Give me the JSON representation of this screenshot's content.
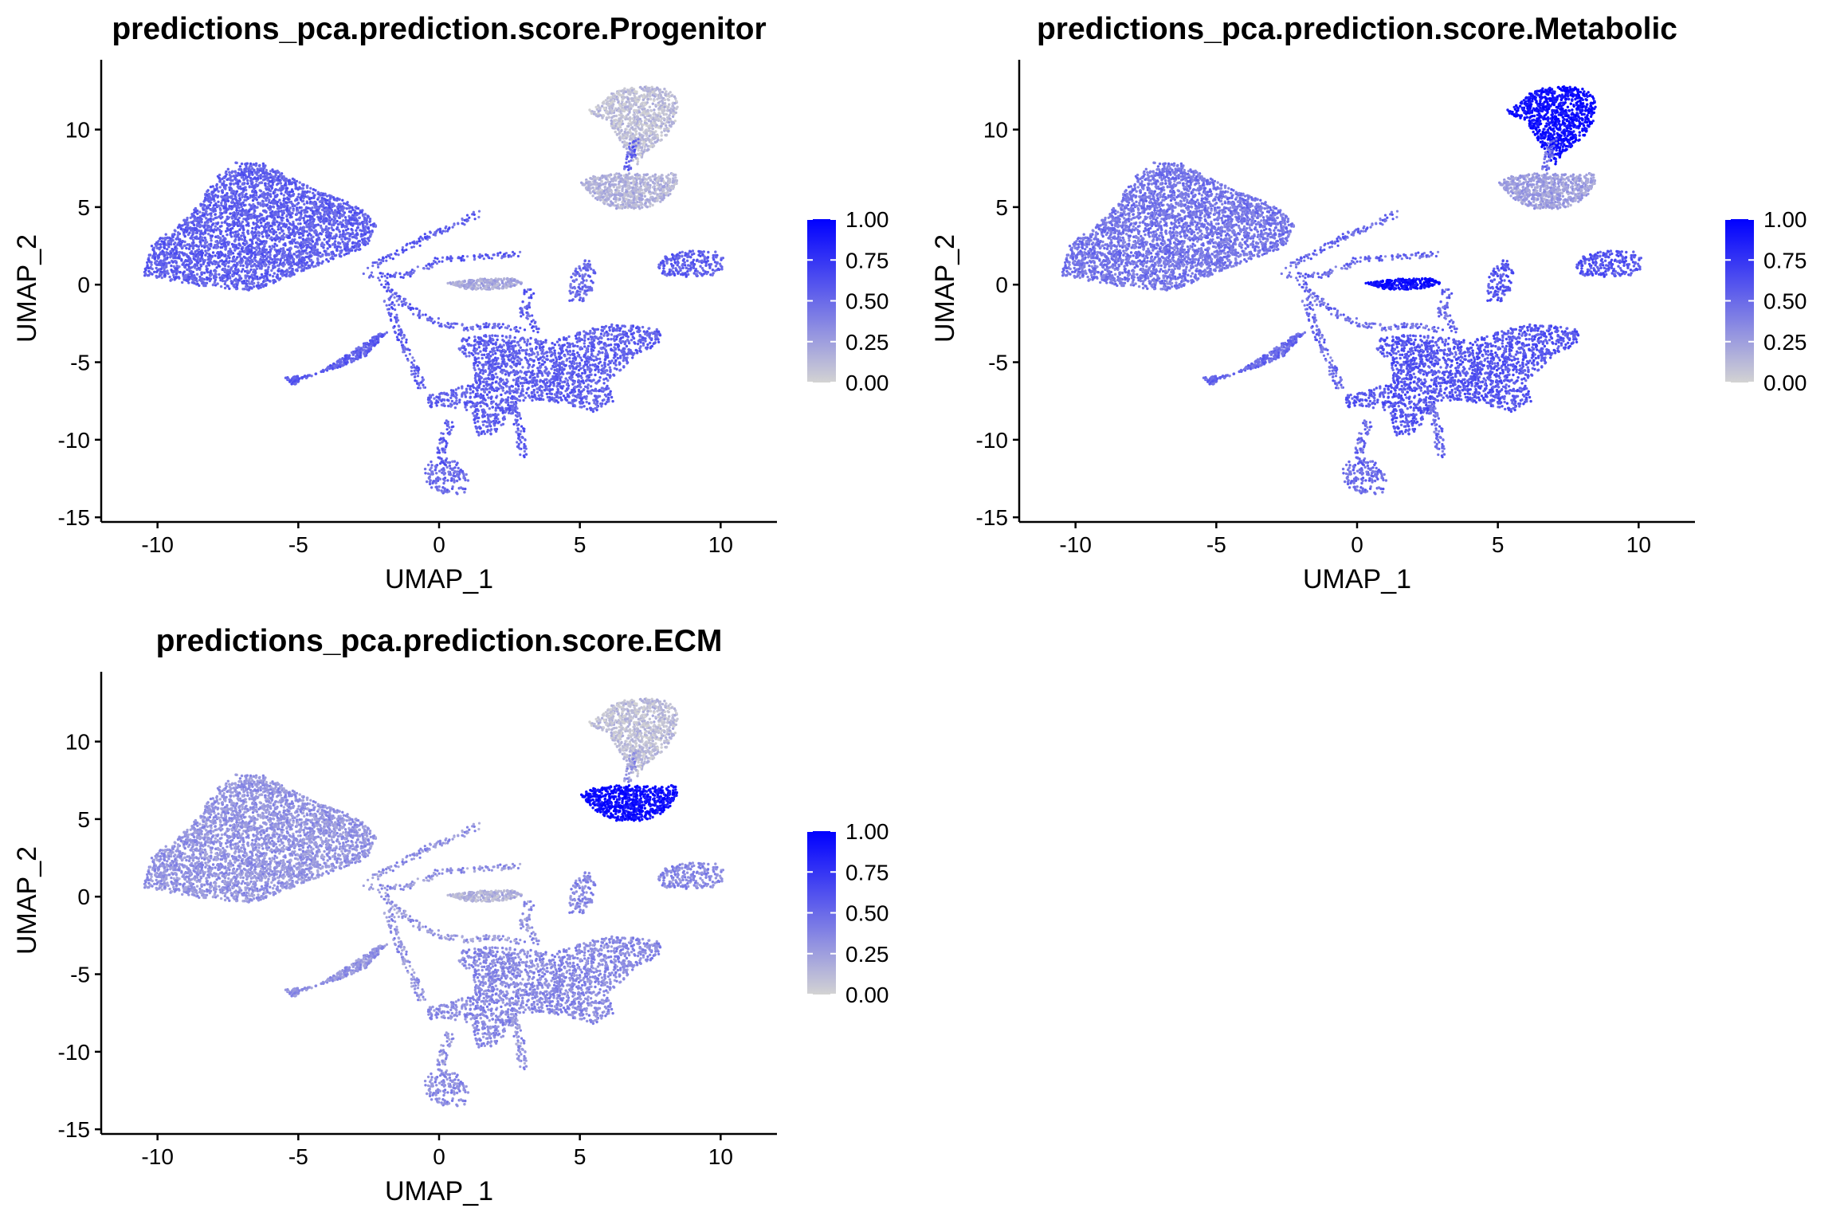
{
  "chart_data": [
    {
      "type": "scatter",
      "title": "predictions_pca.prediction.score.Progenitor",
      "xlabel": "UMAP_1",
      "ylabel": "UMAP_2",
      "xlim": [
        -12,
        12
      ],
      "ylim": [
        -15.3,
        14.5
      ],
      "xticks": [
        -10,
        -5,
        0,
        5,
        10
      ],
      "yticks": [
        -15,
        -10,
        -5,
        0,
        5,
        10
      ],
      "xtick_labels": [
        "-10",
        "-5",
        "0",
        "5",
        "10"
      ],
      "ytick_labels": [
        "-15",
        "-10",
        "-5",
        "0",
        "5",
        "10"
      ],
      "color_scale": {
        "low": "#d3d3d3",
        "high": "#0000ff",
        "min": 0,
        "max": 1,
        "breaks": [
          0,
          0.25,
          0.5,
          0.75,
          1
        ],
        "labels": [
          "0.00",
          "0.25",
          "0.50",
          "0.75",
          "1.00"
        ]
      },
      "clusters": [
        {
          "name": "main-lobe",
          "score": 0.55
        },
        {
          "name": "left-arm",
          "score": 0.55
        },
        {
          "name": "top-island-upper",
          "score": 0.1
        },
        {
          "name": "top-island-lower",
          "score": 0.15
        },
        {
          "name": "right-island",
          "score": 0.55
        },
        {
          "name": "lower-mass",
          "score": 0.55
        },
        {
          "name": "bottom-blob",
          "score": 0.5
        },
        {
          "name": "center-streak",
          "score": 0.2
        },
        {
          "name": "mid-islands",
          "score": 0.5
        }
      ]
    },
    {
      "type": "scatter",
      "title": "predictions_pca.prediction.score.Metabolic",
      "xlabel": "UMAP_1",
      "ylabel": "UMAP_2",
      "xlim": [
        -12,
        12
      ],
      "ylim": [
        -15.3,
        14.5
      ],
      "xticks": [
        -10,
        -5,
        0,
        5,
        10
      ],
      "yticks": [
        -15,
        -10,
        -5,
        0,
        5,
        10
      ],
      "xtick_labels": [
        "-10",
        "-5",
        "0",
        "5",
        "10"
      ],
      "ytick_labels": [
        "-15",
        "-10",
        "-5",
        "0",
        "5",
        "10"
      ],
      "color_scale": {
        "low": "#d3d3d3",
        "high": "#0000ff",
        "min": 0,
        "max": 1,
        "breaks": [
          0,
          0.25,
          0.5,
          0.75,
          1
        ],
        "labels": [
          "0.00",
          "0.25",
          "0.50",
          "0.75",
          "1.00"
        ]
      },
      "clusters": [
        {
          "name": "main-lobe",
          "score": 0.45
        },
        {
          "name": "left-arm",
          "score": 0.5
        },
        {
          "name": "top-island-upper",
          "score": 0.95
        },
        {
          "name": "top-island-lower",
          "score": 0.25
        },
        {
          "name": "right-island",
          "score": 0.6
        },
        {
          "name": "lower-mass",
          "score": 0.6
        },
        {
          "name": "bottom-blob",
          "score": 0.5
        },
        {
          "name": "center-streak",
          "score": 0.95
        },
        {
          "name": "mid-islands",
          "score": 0.6
        }
      ]
    },
    {
      "type": "scatter",
      "title": "predictions_pca.prediction.score.ECM",
      "xlabel": "UMAP_1",
      "ylabel": "UMAP_2",
      "xlim": [
        -12,
        12
      ],
      "ylim": [
        -15.3,
        14.5
      ],
      "xticks": [
        -10,
        -5,
        0,
        5,
        10
      ],
      "yticks": [
        -15,
        -10,
        -5,
        0,
        5,
        10
      ],
      "xtick_labels": [
        "-10",
        "-5",
        "0",
        "5",
        "10"
      ],
      "ytick_labels": [
        "-15",
        "-10",
        "-5",
        "0",
        "5",
        "10"
      ],
      "color_scale": {
        "low": "#d3d3d3",
        "high": "#0000ff",
        "min": 0,
        "max": 1,
        "breaks": [
          0,
          0.25,
          0.5,
          0.75,
          1
        ],
        "labels": [
          "0.00",
          "0.25",
          "0.50",
          "0.75",
          "1.00"
        ]
      },
      "clusters": [
        {
          "name": "main-lobe",
          "score": 0.3
        },
        {
          "name": "left-arm",
          "score": 0.3
        },
        {
          "name": "top-island-upper",
          "score": 0.1
        },
        {
          "name": "top-island-lower",
          "score": 0.95
        },
        {
          "name": "right-island",
          "score": 0.35
        },
        {
          "name": "lower-mass",
          "score": 0.35
        },
        {
          "name": "bottom-blob",
          "score": 0.35
        },
        {
          "name": "center-streak",
          "score": 0.15
        },
        {
          "name": "mid-islands",
          "score": 0.35
        }
      ]
    }
  ]
}
